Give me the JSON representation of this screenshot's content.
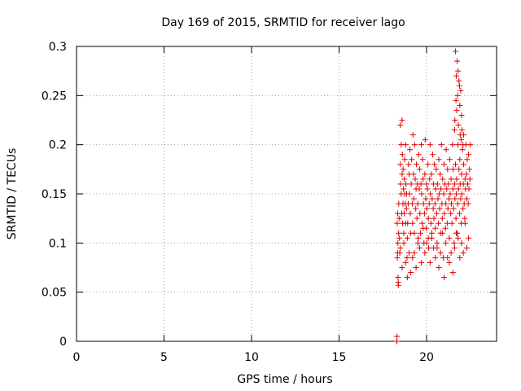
{
  "chart_data": {
    "type": "scatter",
    "title": "Day 169 of 2015, SRMTID for receiver lago",
    "xlabel": "GPS time / hours",
    "ylabel": "SRMTID / TECUs",
    "xlim": [
      0,
      24
    ],
    "ylim": [
      0,
      0.3
    ],
    "xticks": [
      0,
      5,
      10,
      15,
      20
    ],
    "yticks": [
      0,
      0.05,
      0.1,
      0.15,
      0.2,
      0.25,
      0.3
    ],
    "grid": true,
    "marker": "plus",
    "color": "#e00000",
    "series": [
      {
        "x": [
          18.3,
          18.3,
          18.31,
          18.32,
          18.33,
          18.34,
          18.35,
          18.36,
          18.37,
          18.38,
          18.39,
          18.4,
          18.41,
          18.43,
          18.45,
          18.47,
          18.5,
          18.5,
          18.52,
          18.55,
          18.55,
          18.58,
          18.6,
          18.6,
          18.62,
          18.63,
          18.65,
          18.66,
          18.68,
          18.7,
          18.72,
          18.73,
          18.75,
          18.75,
          18.78,
          18.8,
          18.8,
          18.82,
          18.85,
          18.86,
          18.88,
          18.9,
          18.92,
          18.95,
          18.97,
          19.0,
          19.02,
          19.05,
          19.07,
          19.1,
          19.12,
          19.15,
          19.18,
          19.2,
          19.22,
          19.25,
          19.27,
          19.3,
          19.32,
          19.35,
          19.38,
          19.4,
          19.42,
          19.45,
          19.48,
          19.5,
          19.52,
          19.55,
          19.58,
          19.6,
          19.62,
          19.65,
          19.68,
          19.7,
          19.72,
          19.75,
          19.78,
          19.8,
          19.82,
          19.85,
          19.88,
          19.9,
          19.92,
          19.95,
          19.98,
          20.0,
          20.02,
          20.05,
          20.08,
          20.1,
          20.12,
          20.15,
          20.18,
          20.2,
          20.22,
          20.25,
          20.28,
          20.3,
          20.32,
          20.35,
          20.38,
          20.4,
          20.42,
          20.45,
          20.48,
          20.5,
          20.52,
          20.55,
          20.58,
          20.6,
          20.62,
          20.65,
          20.68,
          20.7,
          20.72,
          20.75,
          20.78,
          20.8,
          20.82,
          20.85,
          20.88,
          20.9,
          20.92,
          20.95,
          20.98,
          21.0,
          21.02,
          21.05,
          21.08,
          21.1,
          21.12,
          21.15,
          21.18,
          21.2,
          21.22,
          21.25,
          21.28,
          21.3,
          21.32,
          21.35,
          21.38,
          21.4,
          21.42,
          21.45,
          21.48,
          21.5,
          21.52,
          21.55,
          21.58,
          21.6,
          21.62,
          21.65,
          21.68,
          21.7,
          21.72,
          21.75,
          21.78,
          21.8,
          21.82,
          21.85,
          21.88,
          21.9,
          21.92,
          21.95,
          21.98,
          22.0,
          22.02,
          22.05,
          22.08,
          22.1,
          22.12,
          22.15,
          22.18,
          22.2,
          22.22,
          22.25,
          22.28,
          22.3,
          22.32,
          22.35,
          22.38,
          22.4,
          22.42,
          22.45,
          22.48,
          22.5,
          18.5,
          18.6,
          18.7,
          18.8,
          18.9,
          19.0,
          19.1,
          19.2,
          19.3,
          19.4,
          19.5,
          19.6,
          19.7,
          19.8,
          19.9,
          20.0,
          20.1,
          20.2,
          20.3,
          20.4,
          20.5,
          20.6,
          20.7,
          20.8,
          20.9,
          21.0,
          21.1,
          21.2,
          21.3,
          21.4,
          21.5,
          21.6,
          21.7,
          21.8,
          21.9,
          22.0,
          22.1,
          22.2,
          22.3,
          22.4,
          21.65,
          21.7,
          21.75,
          21.8,
          21.85,
          21.9,
          21.95,
          22.0,
          21.6,
          21.62,
          21.68,
          21.72,
          21.78,
          21.82,
          21.88,
          21.92,
          21.98,
          22.02,
          22.08,
          22.12
        ],
        "y": [
          0.0,
          0.0,
          0.005,
          0.12,
          0.085,
          0.09,
          0.13,
          0.1,
          0.065,
          0.06,
          0.057,
          0.11,
          0.14,
          0.125,
          0.105,
          0.09,
          0.18,
          0.22,
          0.16,
          0.15,
          0.2,
          0.13,
          0.17,
          0.225,
          0.19,
          0.12,
          0.14,
          0.175,
          0.155,
          0.11,
          0.13,
          0.165,
          0.15,
          0.185,
          0.14,
          0.12,
          0.2,
          0.16,
          0.135,
          0.15,
          0.085,
          0.065,
          0.12,
          0.14,
          0.18,
          0.17,
          0.15,
          0.195,
          0.13,
          0.11,
          0.16,
          0.185,
          0.14,
          0.12,
          0.21,
          0.17,
          0.145,
          0.09,
          0.2,
          0.165,
          0.135,
          0.155,
          0.18,
          0.125,
          0.16,
          0.14,
          0.105,
          0.19,
          0.155,
          0.175,
          0.13,
          0.11,
          0.16,
          0.2,
          0.15,
          0.12,
          0.185,
          0.165,
          0.14,
          0.1,
          0.13,
          0.17,
          0.205,
          0.145,
          0.115,
          0.16,
          0.135,
          0.155,
          0.18,
          0.125,
          0.095,
          0.14,
          0.165,
          0.2,
          0.15,
          0.12,
          0.17,
          0.105,
          0.145,
          0.19,
          0.135,
          0.16,
          0.125,
          0.18,
          0.14,
          0.115,
          0.155,
          0.175,
          0.13,
          0.095,
          0.16,
          0.145,
          0.12,
          0.185,
          0.15,
          0.135,
          0.17,
          0.11,
          0.155,
          0.2,
          0.14,
          0.125,
          0.165,
          0.085,
          0.15,
          0.18,
          0.13,
          0.16,
          0.115,
          0.14,
          0.195,
          0.155,
          0.12,
          0.175,
          0.135,
          0.16,
          0.145,
          0.105,
          0.185,
          0.15,
          0.13,
          0.165,
          0.14,
          0.12,
          0.2,
          0.155,
          0.175,
          0.135,
          0.1,
          0.16,
          0.145,
          0.18,
          0.125,
          0.15,
          0.165,
          0.11,
          0.14,
          0.2,
          0.155,
          0.175,
          0.13,
          0.185,
          0.16,
          0.145,
          0.12,
          0.17,
          0.15,
          0.195,
          0.135,
          0.16,
          0.18,
          0.14,
          0.125,
          0.165,
          0.155,
          0.2,
          0.17,
          0.145,
          0.185,
          0.16,
          0.14,
          0.19,
          0.155,
          0.175,
          0.165,
          0.2,
          0.095,
          0.075,
          0.1,
          0.08,
          0.105,
          0.09,
          0.07,
          0.085,
          0.11,
          0.075,
          0.1,
          0.095,
          0.08,
          0.115,
          0.09,
          0.1,
          0.105,
          0.08,
          0.11,
          0.095,
          0.085,
          0.1,
          0.075,
          0.09,
          0.11,
          0.065,
          0.1,
          0.085,
          0.08,
          0.09,
          0.07,
          0.095,
          0.11,
          0.105,
          0.085,
          0.1,
          0.09,
          0.12,
          0.095,
          0.105,
          0.295,
          0.27,
          0.285,
          0.275,
          0.265,
          0.24,
          0.255,
          0.23,
          0.215,
          0.225,
          0.245,
          0.235,
          0.25,
          0.22,
          0.26,
          0.21,
          0.205,
          0.215,
          0.2,
          0.21
        ]
      }
    ]
  }
}
